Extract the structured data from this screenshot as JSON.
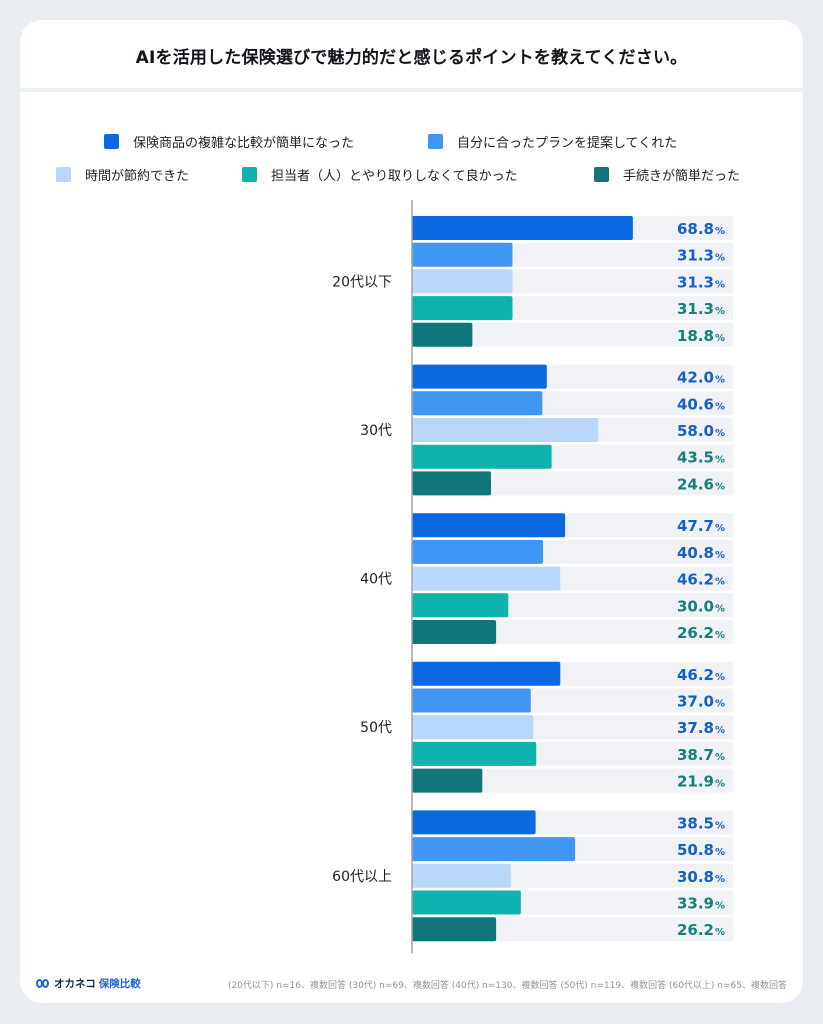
{
  "title": "AIを活用した保険選びで魅力的だと感じるポイントを教えてください。",
  "colors": {
    "series": [
      "#0a68e0",
      "#4096f3",
      "#b9d7fb",
      "#0fb3ad",
      "#11767a"
    ],
    "label": [
      "#1560c8",
      "#1560c8",
      "#1560c8",
      "#157f7c",
      "#157f7c"
    ],
    "track": "#f0f2f5",
    "axis": "#9ea4ab"
  },
  "footer": {
    "logo_main": "オカネコ",
    "logo_accent": "保険比較",
    "note": "(20代以下) n=16、複数回答 (30代) n=69、複数回答 (40代) n=130、複数回答 (50代) n=119、複数回答 (60代以上) n=65、複数回答"
  },
  "chart_data": {
    "type": "bar",
    "orientation": "horizontal",
    "title": "AIを活用した保険選びで魅力的だと感じるポイントを教えてください。",
    "unit": "%",
    "xlim": [
      0,
      100
    ],
    "legend_position": "top",
    "grid": false,
    "categories": [
      "20代以下",
      "30代",
      "40代",
      "50代",
      "60代以上"
    ],
    "series": [
      {
        "name": "保険商品の複雑な比較が簡単になった",
        "values": [
          68.8,
          42.0,
          47.7,
          46.2,
          38.5
        ]
      },
      {
        "name": "自分に合ったプランを提案してくれた",
        "values": [
          31.3,
          40.6,
          40.8,
          37.0,
          50.8
        ]
      },
      {
        "name": "時間が節約できた",
        "values": [
          31.3,
          58.0,
          46.2,
          37.8,
          30.8
        ]
      },
      {
        "name": "担当者（人）とやり取りしなくて良かった",
        "values": [
          31.3,
          43.5,
          30.0,
          38.7,
          33.9
        ]
      },
      {
        "name": "手続きが簡単だった",
        "values": [
          18.8,
          24.6,
          26.2,
          21.9,
          26.2
        ]
      }
    ]
  }
}
